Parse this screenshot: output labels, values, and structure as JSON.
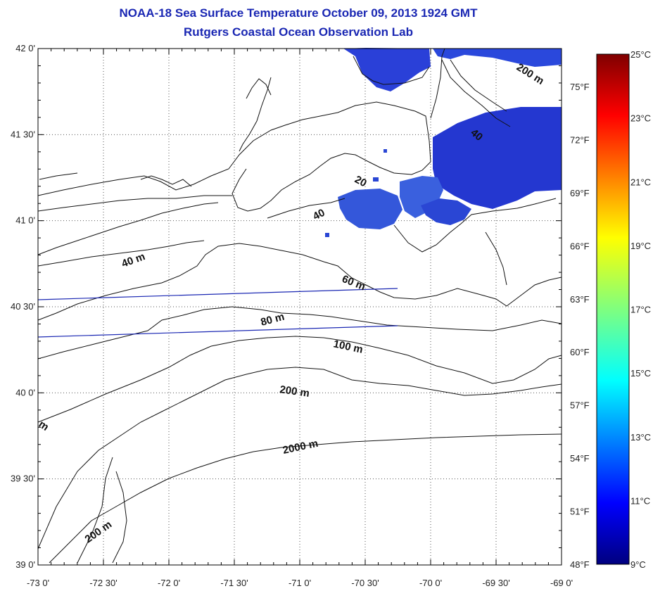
{
  "header": {
    "title": "NOAA-18 Sea Surface Temperature October 09, 2013 1924 GMT",
    "subtitle": "Rutgers Coastal Ocean Observation Lab"
  },
  "map": {
    "lon_range": [
      -73,
      -69
    ],
    "lat_range": [
      39,
      42
    ],
    "lon_ticks": [
      "-73 0'",
      "-72 30'",
      "-72 0'",
      "-71 30'",
      "-71 0'",
      "-70 30'",
      "-70 0'",
      "-69 30'",
      "-69 0'"
    ],
    "lat_ticks": [
      "42 0'",
      "41 30'",
      "41 0'",
      "40 30'",
      "40 0'",
      "39 30'",
      "39 0'"
    ],
    "grid": true,
    "contour_labels": [
      {
        "text": "40 m"
      },
      {
        "text": "60 m"
      },
      {
        "text": "80 m"
      },
      {
        "text": "100 m"
      },
      {
        "text": "200 m"
      },
      {
        "text": "2000 m"
      },
      {
        "text": "200 m"
      },
      {
        "text": "20"
      },
      {
        "text": "40"
      },
      {
        "text": "200 m"
      },
      {
        "text": "40"
      },
      {
        "text": "m"
      }
    ]
  },
  "colorbar": {
    "celsius": [
      "25°C",
      "23°C",
      "21°C",
      "19°C",
      "17°C",
      "15°C",
      "13°C",
      "11°C",
      "9°C"
    ],
    "fahrenheit": [
      "75°F",
      "72°F",
      "69°F",
      "66°F",
      "63°F",
      "60°F",
      "57°F",
      "54°F",
      "51°F",
      "48°F"
    ],
    "colors": [
      "#00007f",
      "#0000ff",
      "#007fff",
      "#00ffff",
      "#7fff7f",
      "#ffff00",
      "#ff7f00",
      "#ff0000",
      "#7f0000"
    ]
  },
  "sst_colors": {
    "deep": "#1a1fd6",
    "mid": "#2a4ad8",
    "light": "#3f6fe0"
  }
}
